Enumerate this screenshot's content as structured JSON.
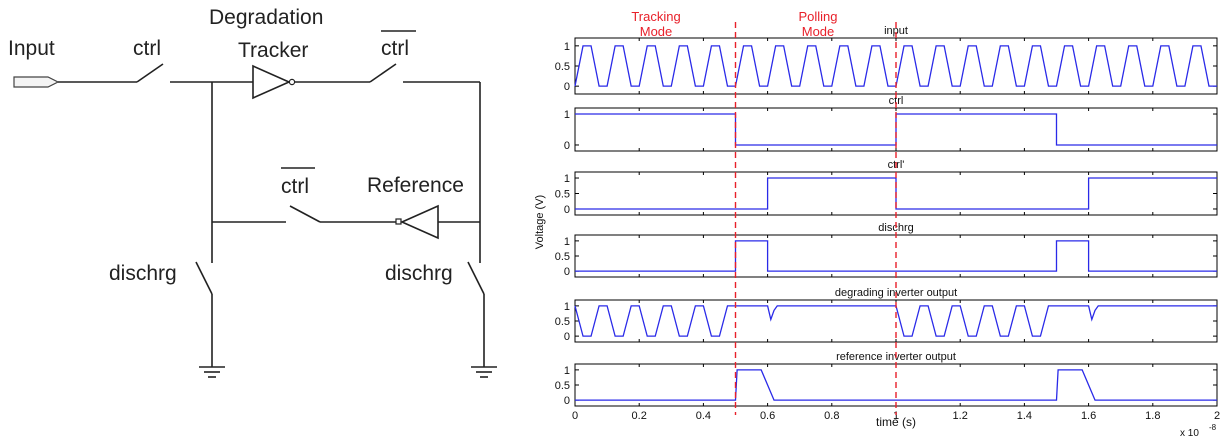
{
  "circuit": {
    "input_label": "Input",
    "ctrl_label": "ctrl",
    "tracker_label_line1": "Degradation",
    "tracker_label_line2": "Tracker",
    "ctrl_bar_top_label": "ctrl",
    "ctrl_bar_mid_label": "ctrl",
    "reference_label": "Reference",
    "dischrg_left_label": "dischrg",
    "dischrg_right_label": "dischrg"
  },
  "modes": {
    "tracking_line1": "Tracking",
    "tracking_line2": "Mode",
    "polling_line1": "Polling",
    "polling_line2": "Mode"
  },
  "plots": {
    "ylabel": "Voltage (V)",
    "xlabel": "time (s)",
    "x_exponent": "x 10",
    "x_exponent_power": "-8"
  },
  "chart_data": {
    "type": "line",
    "xlim": [
      0,
      2
    ],
    "x_ticks": [
      "0",
      "0.2",
      "0.4",
      "0.6",
      "0.8",
      "1",
      "1.2",
      "1.4",
      "1.6",
      "1.8",
      "2"
    ],
    "x_unit_multiplier": "1e-8",
    "mode_boundaries": [
      0.5,
      1.0
    ],
    "series_color": "#2a2ae8",
    "marker_color": "#e8202a",
    "series": [
      {
        "name": "input",
        "yticks": [
          "1",
          "0.5",
          "0"
        ],
        "x": [
          0,
          0.025,
          0.05,
          0.075,
          0.1,
          0.125,
          0.15,
          0.175,
          0.2,
          0.225,
          0.25,
          0.275,
          0.3,
          0.325,
          0.35,
          0.375,
          0.4,
          0.425,
          0.45,
          0.475,
          0.5,
          0.525,
          0.55,
          0.575,
          0.6,
          0.625,
          0.65,
          0.675,
          0.7,
          0.725,
          0.75,
          0.775,
          0.8,
          0.825,
          0.85,
          0.875,
          0.9,
          0.925,
          0.95,
          0.975,
          1.0,
          1.025,
          1.05,
          1.075,
          1.1,
          1.125,
          1.15,
          1.175,
          1.2,
          1.225,
          1.25,
          1.275,
          1.3,
          1.325,
          1.35,
          1.375,
          1.4,
          1.425,
          1.45,
          1.475,
          1.5,
          1.525,
          1.55,
          1.575,
          1.6,
          1.625,
          1.65,
          1.675,
          1.7,
          1.725,
          1.75,
          1.775,
          1.8,
          1.825,
          1.85,
          1.875,
          1.9,
          1.925,
          1.95,
          1.975,
          2.0
        ],
        "y": [
          0,
          1,
          1,
          0,
          0,
          1,
          1,
          0,
          0,
          1,
          1,
          0,
          0,
          1,
          1,
          0,
          0,
          1,
          1,
          0,
          0,
          1,
          1,
          0,
          0,
          1,
          1,
          0,
          0,
          1,
          1,
          0,
          0,
          1,
          1,
          0,
          0,
          1,
          1,
          0,
          0,
          1,
          1,
          0,
          0,
          1,
          1,
          0,
          0,
          1,
          1,
          0,
          0,
          1,
          1,
          0,
          0,
          1,
          1,
          0,
          0,
          1,
          1,
          0,
          0,
          1,
          1,
          0,
          0,
          1,
          1,
          0,
          0,
          1,
          1,
          0,
          0,
          1,
          1,
          0,
          0
        ]
      },
      {
        "name": "ctrl",
        "yticks": [
          "1",
          "0"
        ],
        "x": [
          0,
          0.5,
          0.5,
          1.0,
          1.0,
          1.5,
          1.5,
          2.0
        ],
        "y": [
          1,
          1,
          0,
          0,
          1,
          1,
          0,
          0
        ]
      },
      {
        "name": "ctrl'",
        "yticks": [
          "1",
          "0.5",
          "0"
        ],
        "x": [
          0,
          0.6,
          0.6,
          1.0,
          1.0,
          1.6,
          1.6,
          2.0
        ],
        "y": [
          0,
          0,
          1,
          1,
          0,
          0,
          1,
          1
        ]
      },
      {
        "name": "dischrg",
        "yticks": [
          "1",
          "0.5",
          "0"
        ],
        "x": [
          0,
          0.5,
          0.5,
          0.6,
          0.6,
          1.5,
          1.5,
          1.6,
          1.6,
          2.0
        ],
        "y": [
          0,
          0,
          1,
          1,
          0,
          0,
          1,
          1,
          0,
          0
        ]
      },
      {
        "name": "degrading inverter output",
        "yticks": [
          "1",
          "0.5",
          "0"
        ],
        "x": [
          0,
          0.025,
          0.05,
          0.075,
          0.1,
          0.125,
          0.15,
          0.175,
          0.2,
          0.225,
          0.25,
          0.275,
          0.3,
          0.325,
          0.35,
          0.375,
          0.4,
          0.425,
          0.45,
          0.475,
          0.5,
          0.6,
          0.61,
          0.62,
          0.63,
          1.0,
          1.025,
          1.05,
          1.075,
          1.1,
          1.125,
          1.15,
          1.175,
          1.2,
          1.225,
          1.25,
          1.275,
          1.3,
          1.325,
          1.35,
          1.375,
          1.4,
          1.425,
          1.45,
          1.475,
          1.5,
          1.6,
          1.61,
          1.62,
          1.63,
          2.0
        ],
        "y": [
          1,
          0,
          0,
          1,
          1,
          0,
          0,
          1,
          1,
          0,
          0,
          1,
          1,
          0,
          0,
          1,
          1,
          0,
          0,
          1,
          1,
          1,
          0.55,
          0.85,
          1,
          1,
          0,
          0,
          1,
          1,
          0,
          0,
          1,
          1,
          0,
          0,
          1,
          1,
          0,
          0,
          1,
          1,
          0,
          0,
          1,
          1,
          1,
          0.55,
          0.85,
          1,
          1
        ]
      },
      {
        "name": "reference inverter output",
        "yticks": [
          "1",
          "0.5",
          "0"
        ],
        "x": [
          0,
          0.5,
          0.505,
          0.58,
          0.62,
          1.5,
          1.505,
          1.58,
          1.62,
          2.0
        ],
        "y": [
          0,
          0,
          1,
          1,
          0,
          0,
          1,
          1,
          0,
          0
        ]
      }
    ]
  }
}
